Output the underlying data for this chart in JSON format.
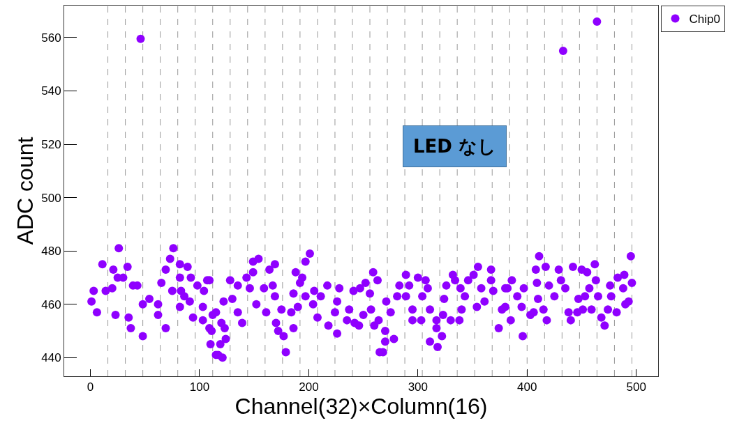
{
  "chart_data": {
    "type": "scatter",
    "xlabel": "Channel(32)×Column(16)",
    "ylabel": "ADC count",
    "xlim": [
      -24,
      520
    ],
    "ylim": [
      433,
      572
    ],
    "xticks": [
      0,
      100,
      200,
      300,
      400,
      500
    ],
    "yticks": [
      440,
      460,
      480,
      500,
      520,
      540,
      560
    ],
    "marker": "circle",
    "legend": "right",
    "grid": false,
    "annotations": [
      "LED なし"
    ],
    "ref_lines": [
      {
        "axis": "x",
        "value": 16,
        "color": "#999999",
        "line_style": "dashed"
      },
      {
        "axis": "x",
        "value": 32,
        "color": "#999999",
        "line_style": "dashed"
      },
      {
        "axis": "x",
        "value": 48,
        "color": "#999999",
        "line_style": "dashed"
      },
      {
        "axis": "x",
        "value": 64,
        "color": "#999999",
        "line_style": "dashed"
      },
      {
        "axis": "x",
        "value": 80,
        "color": "#999999",
        "line_style": "dashed"
      },
      {
        "axis": "x",
        "value": 96,
        "color": "#999999",
        "line_style": "dashed"
      },
      {
        "axis": "x",
        "value": 112,
        "color": "#999999",
        "line_style": "dashed"
      },
      {
        "axis": "x",
        "value": 128,
        "color": "#999999",
        "line_style": "dashed"
      },
      {
        "axis": "x",
        "value": 144,
        "color": "#999999",
        "line_style": "dashed"
      },
      {
        "axis": "x",
        "value": 160,
        "color": "#999999",
        "line_style": "dashed"
      },
      {
        "axis": "x",
        "value": 176,
        "color": "#999999",
        "line_style": "dashed"
      },
      {
        "axis": "x",
        "value": 192,
        "color": "#999999",
        "line_style": "dashed"
      },
      {
        "axis": "x",
        "value": 208,
        "color": "#999999",
        "line_style": "dashed"
      },
      {
        "axis": "x",
        "value": 224,
        "color": "#999999",
        "line_style": "dashed"
      },
      {
        "axis": "x",
        "value": 240,
        "color": "#999999",
        "line_style": "dashed"
      },
      {
        "axis": "x",
        "value": 256,
        "color": "#999999",
        "line_style": "dashed"
      },
      {
        "axis": "x",
        "value": 272,
        "color": "#999999",
        "line_style": "dashed"
      },
      {
        "axis": "x",
        "value": 288,
        "color": "#999999",
        "line_style": "dashed"
      },
      {
        "axis": "x",
        "value": 304,
        "color": "#999999",
        "line_style": "dashed"
      },
      {
        "axis": "x",
        "value": 320,
        "color": "#999999",
        "line_style": "dashed"
      },
      {
        "axis": "x",
        "value": 336,
        "color": "#999999",
        "line_style": "dashed"
      },
      {
        "axis": "x",
        "value": 352,
        "color": "#999999",
        "line_style": "dashed"
      },
      {
        "axis": "x",
        "value": 368,
        "color": "#999999",
        "line_style": "dashed"
      },
      {
        "axis": "x",
        "value": 384,
        "color": "#999999",
        "line_style": "dashed"
      },
      {
        "axis": "x",
        "value": 400,
        "color": "#999999",
        "line_style": "dashed"
      },
      {
        "axis": "x",
        "value": 416,
        "color": "#999999",
        "line_style": "dashed"
      },
      {
        "axis": "x",
        "value": 432,
        "color": "#999999",
        "line_style": "dashed"
      },
      {
        "axis": "x",
        "value": 448,
        "color": "#999999",
        "line_style": "dashed"
      },
      {
        "axis": "x",
        "value": 464,
        "color": "#999999",
        "line_style": "dashed"
      },
      {
        "axis": "x",
        "value": 480,
        "color": "#999999",
        "line_style": "dashed"
      },
      {
        "axis": "x",
        "value": 496,
        "color": "#999999",
        "line_style": "dashed"
      }
    ],
    "series": [
      {
        "name": "Chip0",
        "color": "#8f00ff",
        "x": [
          1,
          3,
          6,
          11,
          21,
          34,
          25,
          30,
          26,
          14,
          20,
          23,
          39,
          43,
          35,
          37,
          48,
          48,
          54,
          62,
          62,
          69,
          65,
          69,
          73,
          76,
          82,
          89,
          82,
          92,
          75,
          83,
          82,
          86,
          91,
          98,
          107,
          104,
          103,
          94,
          103,
          109,
          110,
          112,
          115,
          109,
          115,
          111,
          119,
          117,
          121,
          124,
          123,
          122,
          120,
          128,
          135,
          139,
          130,
          135,
          143,
          149,
          149,
          154,
          146,
          152,
          159,
          161,
          164,
          169,
          167,
          169,
          170,
          172,
          177,
          179,
          175,
          184,
          186,
          188,
          194,
          197,
          201,
          192,
          186,
          197,
          190,
          205,
          204,
          211,
          217,
          208,
          218,
          226,
          228,
          226,
          224,
          235,
          241,
          237,
          242,
          247,
          252,
          259,
          263,
          257,
          250,
          246,
          256,
          260,
          264,
          271,
          270,
          270,
          265,
          268,
          278,
          275,
          281,
          283,
          289,
          292,
          289,
          295,
          295,
          300,
          307,
          309,
          304,
          303,
          311,
          317,
          311,
          318,
          317,
          322,
          323,
          330,
          326,
          332,
          334,
          324,
          339,
          338,
          340,
          343,
          346,
          351,
          354,
          355,
          358,
          361,
          367,
          367,
          369,
          374,
          380,
          377,
          386,
          382,
          380,
          385,
          391,
          396,
          397,
          395,
          403,
          406,
          408,
          411,
          417,
          409,
          410,
          415,
          418,
          420,
          425,
          429,
          431,
          435,
          438,
          440,
          442,
          446,
          447,
          450,
          455,
          451,
          453,
          459,
          457,
          462,
          463,
          465,
          468,
          471,
          476,
          474,
          477,
          482,
          483,
          489,
          488,
          490,
          495,
          496,
          493,
          46,
          433,
          464
        ],
        "values": [
          461,
          465,
          457,
          475,
          473,
          474,
          470,
          470,
          481,
          465,
          466,
          456,
          467,
          467,
          455,
          451,
          448,
          460,
          462,
          460,
          456,
          451,
          468,
          473,
          477,
          481,
          475,
          474,
          470,
          470,
          465,
          465,
          459,
          463,
          461,
          467,
          469,
          465,
          459,
          455,
          454,
          451,
          445,
          456,
          441,
          469,
          457,
          450,
          445,
          441,
          440,
          447,
          451,
          461,
          453,
          469,
          457,
          453,
          462,
          467,
          470,
          472,
          476,
          477,
          466,
          460,
          466,
          457,
          473,
          475,
          467,
          463,
          453,
          450,
          448,
          442,
          458,
          457,
          451,
          472,
          470,
          476,
          479,
          468,
          464,
          463,
          459,
          465,
          460,
          463,
          467,
          455,
          452,
          449,
          466,
          461,
          457,
          454,
          465,
          458,
          453,
          466,
          468,
          472,
          469,
          458,
          456,
          452,
          464,
          452,
          454,
          461,
          450,
          446,
          442,
          442,
          447,
          457,
          463,
          467,
          471,
          467,
          463,
          458,
          454,
          470,
          469,
          466,
          463,
          454,
          458,
          451,
          446,
          444,
          454,
          448,
          456,
          454,
          467,
          471,
          469,
          462,
          466,
          454,
          458,
          463,
          469,
          471,
          459,
          474,
          466,
          461,
          473,
          469,
          465,
          451,
          466,
          458,
          469,
          466,
          459,
          454,
          463,
          448,
          466,
          459,
          456,
          457,
          473,
          478,
          474,
          468,
          462,
          458,
          454,
          467,
          463,
          473,
          469,
          466,
          457,
          454,
          474,
          457,
          462,
          473,
          472,
          458,
          463,
          458,
          466,
          475,
          469,
          463,
          455,
          452,
          467,
          458,
          463,
          457,
          470,
          471,
          466,
          460,
          478,
          468,
          461,
          559.5,
          555,
          566
        ]
      }
    ]
  }
}
